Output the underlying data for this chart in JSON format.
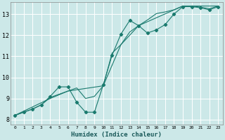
{
  "xlabel": "Humidex (Indice chaleur)",
  "bg_color": "#cce8e8",
  "grid_color": "#ffffff",
  "line_color": "#1a7a6e",
  "xlim": [
    -0.5,
    23.5
  ],
  "ylim": [
    7.75,
    13.55
  ],
  "xticks": [
    0,
    1,
    2,
    3,
    4,
    5,
    6,
    7,
    8,
    9,
    10,
    11,
    12,
    13,
    14,
    15,
    16,
    17,
    18,
    19,
    20,
    21,
    22,
    23
  ],
  "yticks": [
    8,
    9,
    10,
    11,
    12,
    13
  ],
  "series_zigzag_x": [
    0,
    1,
    2,
    3,
    4,
    5,
    6,
    7,
    8,
    9,
    10,
    11,
    12,
    13,
    14,
    15,
    16,
    17,
    18,
    19,
    20,
    21,
    22,
    23
  ],
  "series_zigzag_y": [
    8.2,
    8.35,
    8.5,
    8.7,
    9.1,
    9.55,
    9.55,
    8.82,
    8.35,
    8.35,
    9.65,
    11.05,
    12.05,
    12.7,
    12.45,
    12.1,
    12.25,
    12.5,
    13.0,
    13.35,
    13.35,
    13.3,
    13.2,
    13.35
  ],
  "series_upper_x": [
    0,
    1,
    2,
    3,
    4,
    5,
    6,
    7,
    8,
    9,
    10,
    11,
    12,
    13,
    14,
    15,
    16,
    17,
    18,
    19,
    20,
    21,
    22,
    23
  ],
  "series_upper_y": [
    8.2,
    8.35,
    8.5,
    8.7,
    9.05,
    9.2,
    9.35,
    9.5,
    9.0,
    9.1,
    9.6,
    11.15,
    11.55,
    12.15,
    12.45,
    12.72,
    13.02,
    13.1,
    13.2,
    13.38,
    13.38,
    13.33,
    13.25,
    13.38
  ],
  "series_straight_x": [
    0,
    4,
    6,
    10,
    12,
    14,
    19,
    23
  ],
  "series_straight_y": [
    8.2,
    9.0,
    9.35,
    9.6,
    11.55,
    12.45,
    13.38,
    13.38
  ]
}
